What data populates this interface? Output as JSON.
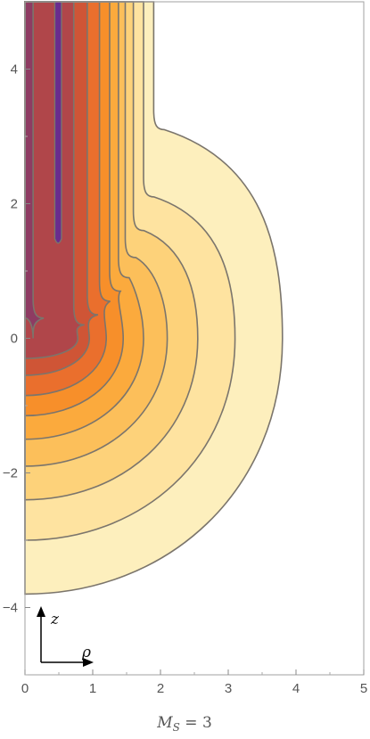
{
  "chart_data": {
    "type": "contour",
    "xlim": [
      0,
      5
    ],
    "ylim": [
      -5,
      5
    ],
    "x_ticks": [
      "0",
      "1",
      "2",
      "3",
      "4",
      "5"
    ],
    "y_ticks": [
      "−4",
      "−2",
      "0",
      "2",
      "4"
    ],
    "y_tick_values": [
      -4,
      -2,
      0,
      2,
      4
    ],
    "caption": {
      "m": "M",
      "sub": "S",
      "rest": " = 3"
    },
    "axes_glyph": {
      "z": "z",
      "rho": "ρ"
    },
    "frame": true,
    "grid": false,
    "colors": {
      "levels": [
        "#fdefbd",
        "#fee3a0",
        "#fdd27a",
        "#fcbf5a",
        "#fbaa3d",
        "#f78f2a",
        "#ea6f2d",
        "#cf5536",
        "#b0464a",
        "#8e3b62",
        "#6a2c8e"
      ],
      "contour_line": "#7b756c",
      "frame": "#a0a0a0"
    },
    "contours": [
      {
        "rho_equator": 3.8,
        "z_bottom": -3.8,
        "column_rho": 1.9,
        "neck_z": 3.1
      },
      {
        "rho_equator": 3.1,
        "z_bottom": -3.0,
        "column_rho": 1.75,
        "neck_z": 2.1
      },
      {
        "rho_equator": 2.55,
        "z_bottom": -2.4,
        "column_rho": 1.6,
        "neck_z": 1.6
      },
      {
        "rho_equator": 2.1,
        "z_bottom": -1.9,
        "column_rho": 1.48,
        "neck_z": 1.2
      },
      {
        "rho_equator": 1.75,
        "z_bottom": -1.5,
        "column_rho": 1.38,
        "neck_z": 0.9
      },
      {
        "rho_equator": 1.45,
        "z_bottom": -1.15,
        "column_rho": 1.25,
        "neck_z": 0.7
      },
      {
        "rho_equator": 1.2,
        "z_bottom": -0.85,
        "column_rho": 1.1,
        "neck_z": 0.55
      },
      {
        "rho_equator": 0.95,
        "z_bottom": -0.55,
        "column_rho": 0.92,
        "neck_z": 0.35
      },
      {
        "rho_equator": 0.78,
        "z_bottom": -0.3,
        "column_rho": 0.72,
        "neck_z": 0.2
      },
      {
        "rho_equator": 0.12,
        "z_bottom": 0.3,
        "column_rho": 0.12,
        "neck_z": 0.3
      }
    ],
    "inner_tube": {
      "rho_left": 0.44,
      "rho_right": 0.54,
      "z_bottom": 1.4,
      "z_top": 5.0
    }
  }
}
